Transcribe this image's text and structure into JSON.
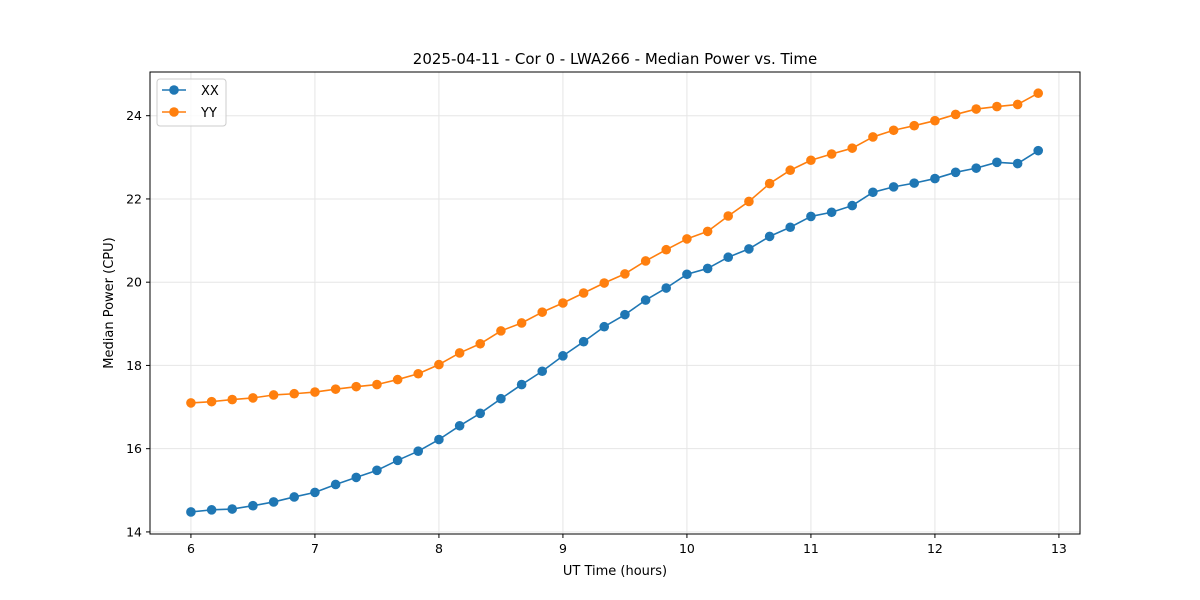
{
  "chart_data": {
    "type": "line",
    "title": "2025-04-11 - Cor 0 - LWA266 - Median Power vs. Time",
    "xlabel": "UT Time (hours)",
    "ylabel": "Median Power (CPU)",
    "xlim": [
      5.67,
      13.17
    ],
    "ylim": [
      13.95,
      25.05
    ],
    "xticks": [
      6,
      7,
      8,
      9,
      10,
      11,
      12,
      13
    ],
    "yticks": [
      14,
      16,
      18,
      20,
      22,
      24
    ],
    "grid": true,
    "legend_position": "top-left",
    "x": [
      6.0,
      6.167,
      6.333,
      6.5,
      6.667,
      6.833,
      7.0,
      7.167,
      7.333,
      7.5,
      7.667,
      7.833,
      8.0,
      8.167,
      8.333,
      8.5,
      8.667,
      8.833,
      9.0,
      9.167,
      9.333,
      9.5,
      9.667,
      9.833,
      10.0,
      10.167,
      10.333,
      10.5,
      10.667,
      10.833,
      11.0,
      11.167,
      11.333,
      11.5,
      11.667,
      11.833,
      12.0,
      12.167,
      12.333,
      12.5,
      12.667,
      12.833
    ],
    "series": [
      {
        "name": "XX",
        "color": "#1f77b4",
        "values": [
          14.48,
          14.53,
          14.55,
          14.63,
          14.72,
          14.84,
          14.95,
          15.14,
          15.31,
          15.48,
          15.72,
          15.94,
          16.22,
          16.55,
          16.85,
          17.2,
          17.54,
          17.86,
          18.23,
          18.57,
          18.93,
          19.22,
          19.57,
          19.86,
          20.19,
          20.33,
          20.6,
          20.8,
          21.1,
          21.32,
          21.58,
          21.68,
          21.84,
          22.16,
          22.29,
          22.38,
          22.49,
          22.64,
          22.74,
          22.88,
          22.85,
          23.16
        ]
      },
      {
        "name": "YY",
        "color": "#ff7f0e",
        "values": [
          17.1,
          17.13,
          17.18,
          17.22,
          17.29,
          17.32,
          17.36,
          17.43,
          17.49,
          17.54,
          17.66,
          17.8,
          18.02,
          18.3,
          18.52,
          18.83,
          19.02,
          19.28,
          19.5,
          19.74,
          19.98,
          20.2,
          20.51,
          20.78,
          21.04,
          21.22,
          21.59,
          21.94,
          22.37,
          22.69,
          22.93,
          23.08,
          23.22,
          23.49,
          23.65,
          23.76,
          23.88,
          24.03,
          24.16,
          24.22,
          24.27,
          24.54
        ]
      }
    ]
  }
}
